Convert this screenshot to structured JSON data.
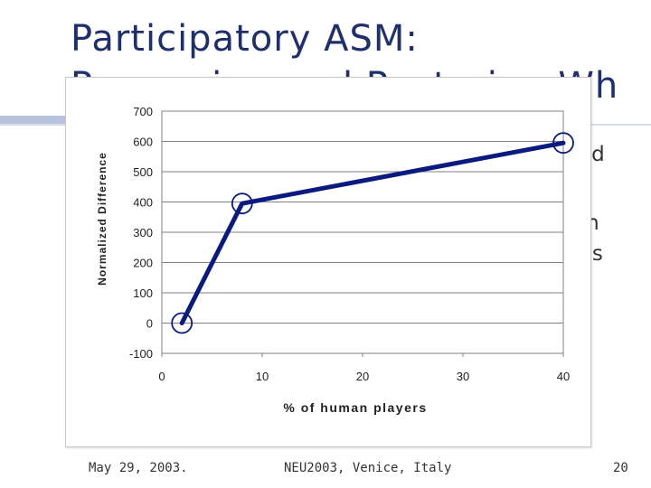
{
  "slide": {
    "title_line1": "Participatory ASM:",
    "title_line2": "Preserving and Restoring Wh",
    "body_fragments": [
      "sed",
      "on",
      "was"
    ]
  },
  "footer": {
    "date": "May 29, 2003.",
    "event": "NEU2003, Venice, Italy",
    "page": "20"
  },
  "chart_data": {
    "type": "line",
    "title": "",
    "xlabel": "% of human players",
    "ylabel": "Normalized Difference",
    "xlim": [
      0,
      40
    ],
    "ylim": [
      -100,
      700
    ],
    "xticks": [
      "0",
      "10",
      "20",
      "30",
      "40"
    ],
    "yticks": [
      "700",
      "600",
      "500",
      "400",
      "300",
      "200",
      "100",
      "0",
      "-100"
    ],
    "grid": true,
    "legend": "none",
    "series": [
      {
        "color": "#0a1a80",
        "x": [
          2,
          8,
          40
        ],
        "y": [
          0,
          395,
          595
        ]
      }
    ]
  }
}
